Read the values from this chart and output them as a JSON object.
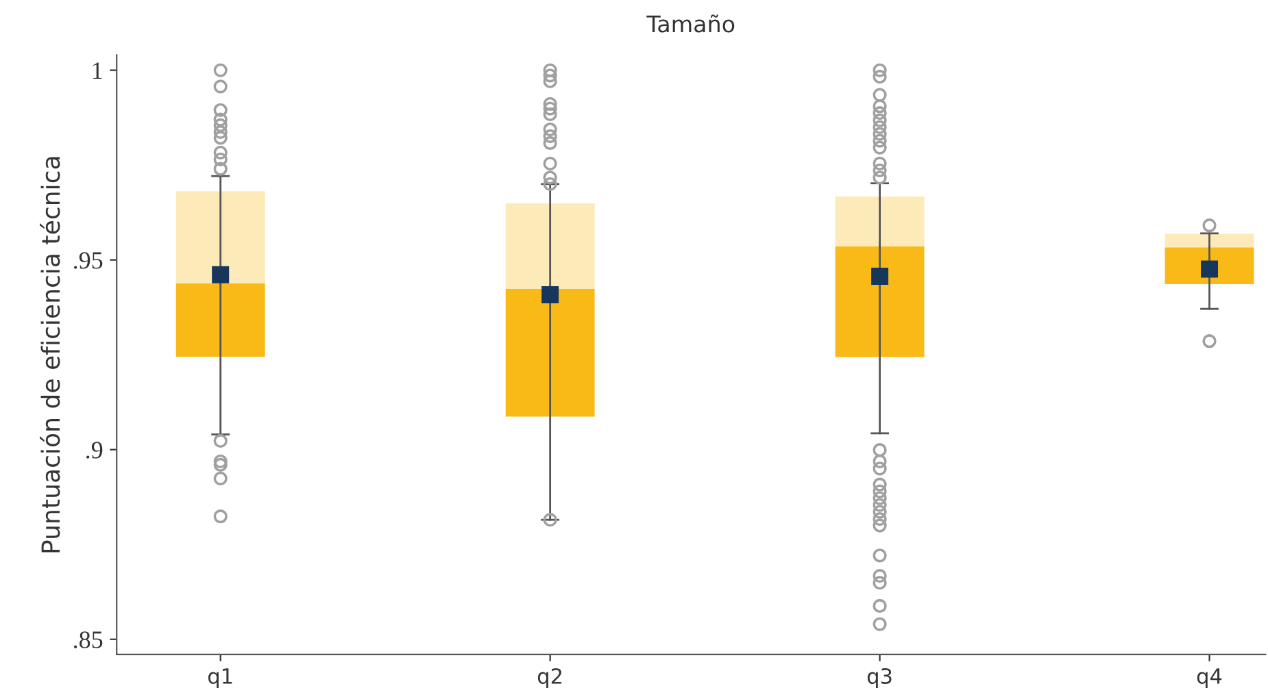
{
  "chart_data": {
    "type": "box",
    "title": "Tamaño",
    "ylabel": "Puntuación de eficiencia técnica",
    "categories": [
      "q1",
      "q2",
      "q3",
      "q4"
    ],
    "series": [
      {
        "color": "#f9b916",
        "boxes": [
          {
            "low": 0.904,
            "q1": 0.9245,
            "median": 0.9438,
            "q3": 0.9681,
            "high": 0.9721,
            "mean": 0.9461,
            "outliers": [
              1.0,
              0.9957,
              0.9895,
              0.987,
              0.9855,
              0.9837,
              0.9822,
              0.9783,
              0.9765,
              0.974,
              0.9023,
              0.8969,
              0.896,
              0.8924,
              0.8824
            ]
          },
          {
            "low": 0.8815,
            "q1": 0.9087,
            "median": 0.9424,
            "q3": 0.9649,
            "high": 0.97,
            "mean": 0.9408,
            "outliers": [
              1.0,
              0.9986,
              0.9971,
              0.9911,
              0.9899,
              0.9884,
              0.9844,
              0.9826,
              0.9808,
              0.9754,
              0.9717,
              0.97,
              0.8815
            ]
          },
          {
            "low": 0.9043,
            "q1": 0.9244,
            "median": 0.9536,
            "q3": 0.9667,
            "high": 0.9702,
            "mean": 0.9457,
            "outliers": [
              1.0,
              0.9983,
              0.9935,
              0.9905,
              0.9887,
              0.9868,
              0.985,
              0.9832,
              0.9814,
              0.9796,
              0.9754,
              0.9736,
              0.9717,
              0.8999,
              0.8969,
              0.895,
              0.8908,
              0.889,
              0.8872,
              0.8854,
              0.8836,
              0.8817,
              0.88,
              0.8721,
              0.8667,
              0.8649,
              0.8588,
              0.854
            ]
          },
          {
            "low": 0.9371,
            "q1": 0.9436,
            "median": 0.9533,
            "q3": 0.9569,
            "high": 0.957,
            "mean": 0.9476,
            "outliers": [
              0.9591,
              0.9286
            ]
          }
        ]
      }
    ],
    "ylim": [
      0.846,
      1.004
    ],
    "yticks": [
      {
        "value": 0.85,
        "label": ".85"
      },
      {
        "value": 0.9,
        "label": ".9"
      },
      {
        "value": 0.95,
        "label": ".95"
      },
      1
    ],
    "marker": "square",
    "grid": false,
    "legend": false
  }
}
